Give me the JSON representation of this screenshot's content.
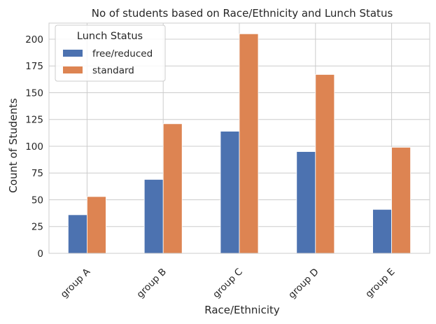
{
  "chart_data": {
    "type": "bar",
    "title": "No of students based on Race/Ethnicity and Lunch Status",
    "xlabel": "Race/Ethnicity",
    "ylabel": "Count of Students",
    "categories": [
      "group A",
      "group B",
      "group C",
      "group D",
      "group E"
    ],
    "series": [
      {
        "name": "free/reduced",
        "color": "#4c72b0",
        "values": [
          36,
          69,
          114,
          95,
          41
        ]
      },
      {
        "name": "standard",
        "color": "#dd8452",
        "values": [
          53,
          121,
          205,
          167,
          99
        ]
      }
    ],
    "ylim": [
      0,
      215
    ],
    "yticks": [
      0,
      25,
      50,
      75,
      100,
      125,
      150,
      175,
      200
    ],
    "grid": true,
    "legend": {
      "title": "Lunch Status",
      "placement": "top-left"
    }
  }
}
